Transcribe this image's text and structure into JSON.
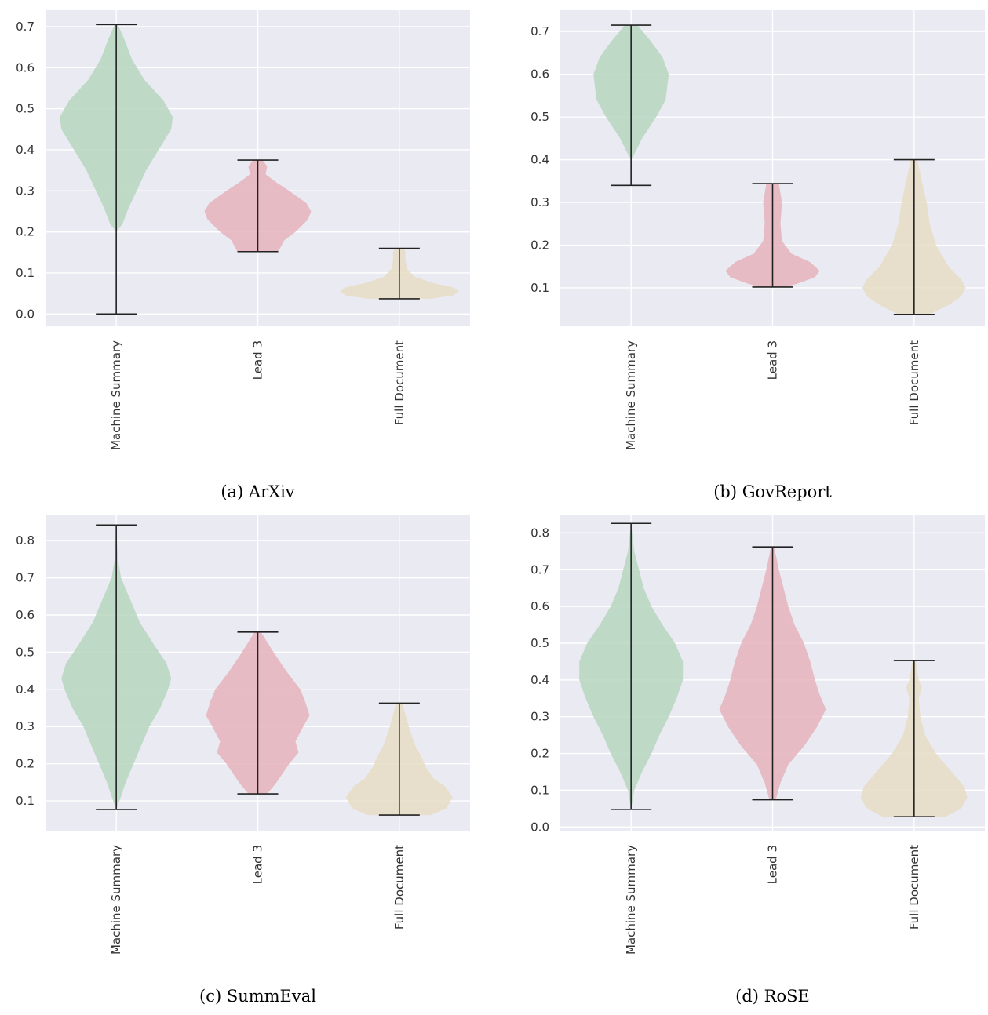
{
  "colors": {
    "panel_bg": "#eaeaf2",
    "grid": "#ffffff",
    "lines": "#222222",
    "machine_summary": "#b7d6bf",
    "lead_3": "#e6b3bb",
    "full_document": "#e6ddc4"
  },
  "chart_data": [
    {
      "type": "violin",
      "caption": "(a) ArXiv",
      "categories": [
        "Machine Summary",
        "Lead 3",
        "Full Document"
      ],
      "ylim": [
        -0.03,
        0.74
      ],
      "yticks": [
        "0.0",
        "0.1",
        "0.2",
        "0.3",
        "0.4",
        "0.5",
        "0.6",
        "0.7"
      ],
      "grid": true,
      "series": [
        {
          "stats": {
            "min": 0.0,
            "max": 0.705
          },
          "density": [
            [
              0.0,
              0
            ],
            [
              0.2,
              0
            ],
            [
              0.22,
              0.04
            ],
            [
              0.26,
              0.08
            ],
            [
              0.3,
              0.13
            ],
            [
              0.35,
              0.19
            ],
            [
              0.4,
              0.27
            ],
            [
              0.45,
              0.35
            ],
            [
              0.48,
              0.36
            ],
            [
              0.52,
              0.3
            ],
            [
              0.57,
              0.18
            ],
            [
              0.62,
              0.1
            ],
            [
              0.67,
              0.05
            ],
            [
              0.705,
              0.01
            ]
          ]
        },
        {
          "stats": {
            "min": 0.152,
            "max": 0.375
          },
          "density": [
            [
              0.152,
              0.13
            ],
            [
              0.18,
              0.17
            ],
            [
              0.2,
              0.24
            ],
            [
              0.23,
              0.32
            ],
            [
              0.25,
              0.34
            ],
            [
              0.27,
              0.31
            ],
            [
              0.3,
              0.2
            ],
            [
              0.32,
              0.12
            ],
            [
              0.34,
              0.05
            ],
            [
              0.36,
              0.06
            ],
            [
              0.375,
              0.03
            ]
          ]
        },
        {
          "stats": {
            "min": 0.037,
            "max": 0.16
          },
          "density": [
            [
              0.037,
              0.2
            ],
            [
              0.045,
              0.34
            ],
            [
              0.055,
              0.38
            ],
            [
              0.065,
              0.34
            ],
            [
              0.075,
              0.22
            ],
            [
              0.09,
              0.1
            ],
            [
              0.11,
              0.05
            ],
            [
              0.13,
              0.04
            ],
            [
              0.15,
              0.04
            ],
            [
              0.16,
              0.03
            ]
          ]
        }
      ]
    },
    {
      "type": "violin",
      "caption": "(b) GovReport",
      "categories": [
        "Machine Summary",
        "Lead 3",
        "Full Document"
      ],
      "ylim": [
        0.01,
        0.75
      ],
      "yticks": [
        "0.1",
        "0.2",
        "0.3",
        "0.4",
        "0.5",
        "0.6",
        "0.7"
      ],
      "grid": true,
      "series": [
        {
          "stats": {
            "min": 0.34,
            "max": 0.715
          },
          "density": [
            [
              0.34,
              0
            ],
            [
              0.4,
              0
            ],
            [
              0.42,
              0.03
            ],
            [
              0.45,
              0.07
            ],
            [
              0.5,
              0.16
            ],
            [
              0.54,
              0.22
            ],
            [
              0.57,
              0.23
            ],
            [
              0.6,
              0.24
            ],
            [
              0.64,
              0.2
            ],
            [
              0.68,
              0.12
            ],
            [
              0.715,
              0.04
            ]
          ]
        },
        {
          "stats": {
            "min": 0.102,
            "max": 0.344
          },
          "density": [
            [
              0.102,
              0.08
            ],
            [
              0.11,
              0.16
            ],
            [
              0.125,
              0.27
            ],
            [
              0.14,
              0.3
            ],
            [
              0.16,
              0.24
            ],
            [
              0.18,
              0.12
            ],
            [
              0.21,
              0.06
            ],
            [
              0.25,
              0.05
            ],
            [
              0.3,
              0.06
            ],
            [
              0.344,
              0.04
            ]
          ]
        },
        {
          "stats": {
            "min": 0.038,
            "max": 0.4
          },
          "density": [
            [
              0.038,
              0.1
            ],
            [
              0.06,
              0.22
            ],
            [
              0.08,
              0.3
            ],
            [
              0.1,
              0.33
            ],
            [
              0.12,
              0.3
            ],
            [
              0.15,
              0.22
            ],
            [
              0.2,
              0.14
            ],
            [
              0.25,
              0.1
            ],
            [
              0.3,
              0.08
            ],
            [
              0.35,
              0.05
            ],
            [
              0.4,
              0.02
            ]
          ]
        }
      ]
    },
    {
      "type": "violin",
      "caption": "(c) SummEval",
      "categories": [
        "Machine Summary",
        "Lead 3",
        "Full Document"
      ],
      "ylim": [
        0.02,
        0.87
      ],
      "yticks": [
        "0.1",
        "0.2",
        "0.3",
        "0.4",
        "0.5",
        "0.6",
        "0.7",
        "0.8"
      ],
      "grid": true,
      "series": [
        {
          "stats": {
            "min": 0.077,
            "max": 0.842
          },
          "density": [
            [
              0.077,
              0
            ],
            [
              0.1,
              0.02
            ],
            [
              0.15,
              0.06
            ],
            [
              0.2,
              0.11
            ],
            [
              0.25,
              0.16
            ],
            [
              0.3,
              0.21
            ],
            [
              0.35,
              0.28
            ],
            [
              0.4,
              0.33
            ],
            [
              0.43,
              0.35
            ],
            [
              0.47,
              0.32
            ],
            [
              0.52,
              0.24
            ],
            [
              0.58,
              0.15
            ],
            [
              0.65,
              0.08
            ],
            [
              0.7,
              0.03
            ],
            [
              0.75,
              0.01
            ],
            [
              0.842,
              0
            ]
          ]
        },
        {
          "stats": {
            "min": 0.119,
            "max": 0.554
          },
          "density": [
            [
              0.119,
              0.06
            ],
            [
              0.15,
              0.12
            ],
            [
              0.2,
              0.2
            ],
            [
              0.23,
              0.26
            ],
            [
              0.26,
              0.24
            ],
            [
              0.3,
              0.29
            ],
            [
              0.33,
              0.33
            ],
            [
              0.37,
              0.3
            ],
            [
              0.4,
              0.27
            ],
            [
              0.45,
              0.18
            ],
            [
              0.5,
              0.1
            ],
            [
              0.554,
              0.02
            ]
          ]
        },
        {
          "stats": {
            "min": 0.062,
            "max": 0.363
          },
          "density": [
            [
              0.062,
              0.2
            ],
            [
              0.08,
              0.3
            ],
            [
              0.11,
              0.34
            ],
            [
              0.14,
              0.29
            ],
            [
              0.16,
              0.22
            ],
            [
              0.19,
              0.17
            ],
            [
              0.22,
              0.14
            ],
            [
              0.25,
              0.1
            ],
            [
              0.3,
              0.06
            ],
            [
              0.363,
              0.02
            ]
          ]
        }
      ]
    },
    {
      "type": "violin",
      "caption": "(d) RoSE",
      "categories": [
        "Machine Summary",
        "Lead 3",
        "Full Document"
      ],
      "ylim": [
        -0.01,
        0.85
      ],
      "yticks": [
        "0.0",
        "0.1",
        "0.2",
        "0.3",
        "0.4",
        "0.5",
        "0.6",
        "0.7",
        "0.8"
      ],
      "grid": true,
      "series": [
        {
          "stats": {
            "min": 0.048,
            "max": 0.826
          },
          "density": [
            [
              0.048,
              0
            ],
            [
              0.1,
              0.02
            ],
            [
              0.15,
              0.07
            ],
            [
              0.2,
              0.13
            ],
            [
              0.25,
              0.18
            ],
            [
              0.3,
              0.24
            ],
            [
              0.35,
              0.29
            ],
            [
              0.4,
              0.33
            ],
            [
              0.45,
              0.33
            ],
            [
              0.5,
              0.28
            ],
            [
              0.55,
              0.2
            ],
            [
              0.6,
              0.13
            ],
            [
              0.65,
              0.08
            ],
            [
              0.7,
              0.05
            ],
            [
              0.75,
              0.02
            ],
            [
              0.826,
              0
            ]
          ]
        },
        {
          "stats": {
            "min": 0.074,
            "max": 0.762
          },
          "density": [
            [
              0.074,
              0.02
            ],
            [
              0.12,
              0.05
            ],
            [
              0.17,
              0.1
            ],
            [
              0.22,
              0.2
            ],
            [
              0.27,
              0.28
            ],
            [
              0.32,
              0.34
            ],
            [
              0.36,
              0.3
            ],
            [
              0.4,
              0.27
            ],
            [
              0.45,
              0.24
            ],
            [
              0.5,
              0.2
            ],
            [
              0.55,
              0.14
            ],
            [
              0.6,
              0.1
            ],
            [
              0.65,
              0.07
            ],
            [
              0.7,
              0.04
            ],
            [
              0.762,
              0.01
            ]
          ]
        },
        {
          "stats": {
            "min": 0.028,
            "max": 0.453
          },
          "density": [
            [
              0.028,
              0.2
            ],
            [
              0.05,
              0.3
            ],
            [
              0.08,
              0.34
            ],
            [
              0.11,
              0.32
            ],
            [
              0.14,
              0.26
            ],
            [
              0.17,
              0.2
            ],
            [
              0.2,
              0.14
            ],
            [
              0.25,
              0.07
            ],
            [
              0.3,
              0.04
            ],
            [
              0.35,
              0.03
            ],
            [
              0.38,
              0.05
            ],
            [
              0.4,
              0.03
            ],
            [
              0.453,
              0.01
            ]
          ]
        }
      ]
    }
  ]
}
